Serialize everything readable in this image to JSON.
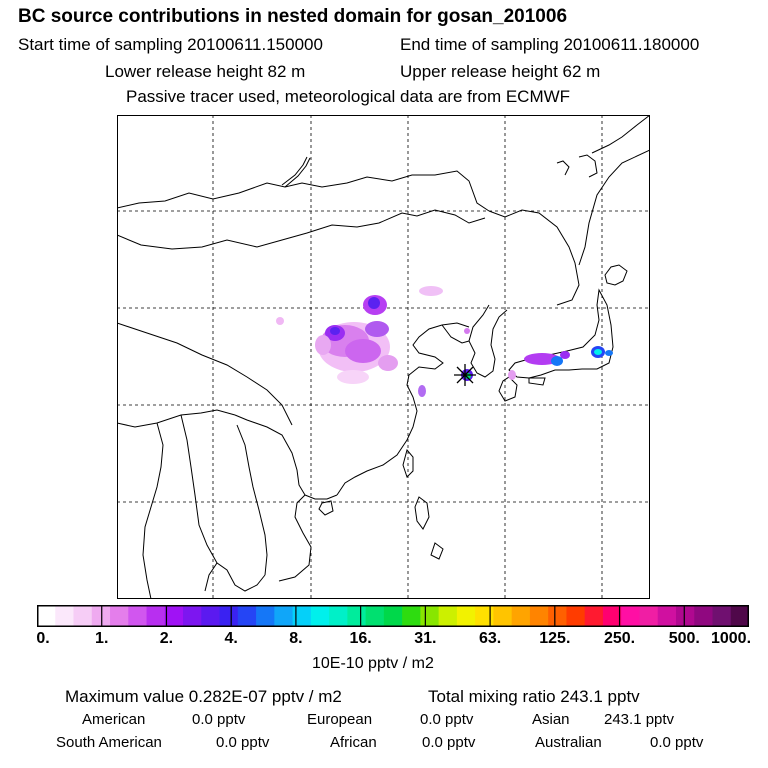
{
  "header": {
    "title": "BC  source contributions in nested domain for gosan_201006",
    "start_sampling": "Start time of sampling 20100611.150000",
    "end_sampling": "End time of sampling 20100611.180000",
    "lower_release": "Lower release height   82 m",
    "upper_release": "Upper release height   62 m",
    "tracer_note": "Passive tracer used, meteorological data are from ECMWF"
  },
  "colorbar": {
    "colors": [
      "#ffffff",
      "#fbe8fb",
      "#f6cdf6",
      "#efaaf0",
      "#e47eeb",
      "#d156ef",
      "#b82ff0",
      "#a012f5",
      "#7d16f0",
      "#5b1af0",
      "#3a22f2",
      "#2545f5",
      "#1577f7",
      "#10a6f9",
      "#05d0f9",
      "#00f0ec",
      "#00f0c8",
      "#00ec9c",
      "#00e070",
      "#00d84a",
      "#2edc10",
      "#88e600",
      "#ccf000",
      "#f2f200",
      "#ffe000",
      "#ffc400",
      "#ffa400",
      "#ff8400",
      "#ff6000",
      "#ff3c00",
      "#ff1a30",
      "#ff0070",
      "#ff0fa4",
      "#f01ea4",
      "#d010a0",
      "#b00890",
      "#900880",
      "#701070",
      "#50084a"
    ],
    "tick_labels": [
      "0.",
      "1.",
      "2.",
      "4.",
      "8.",
      "16.",
      "31.",
      "63.",
      "125.",
      "250.",
      "500.",
      "1000."
    ],
    "units": "10E-10 pptv / m2"
  },
  "stats": {
    "max_value": "Maximum value  0.282E-07 pptv / m2",
    "total_mixing": "Total mixing ratio      243.1 pptv",
    "american_label": "American",
    "american_value": "0.0 pptv",
    "european_label": "European",
    "european_value": "0.0 pptv",
    "asian_label": "Asian",
    "asian_value": "243.1 pptv",
    "south_american_label": "South American",
    "south_american_value": "0.0 pptv",
    "african_label": "African",
    "african_value": "0.0 pptv",
    "australian_label": "Australian",
    "australian_value": "0.0 pptv"
  }
}
